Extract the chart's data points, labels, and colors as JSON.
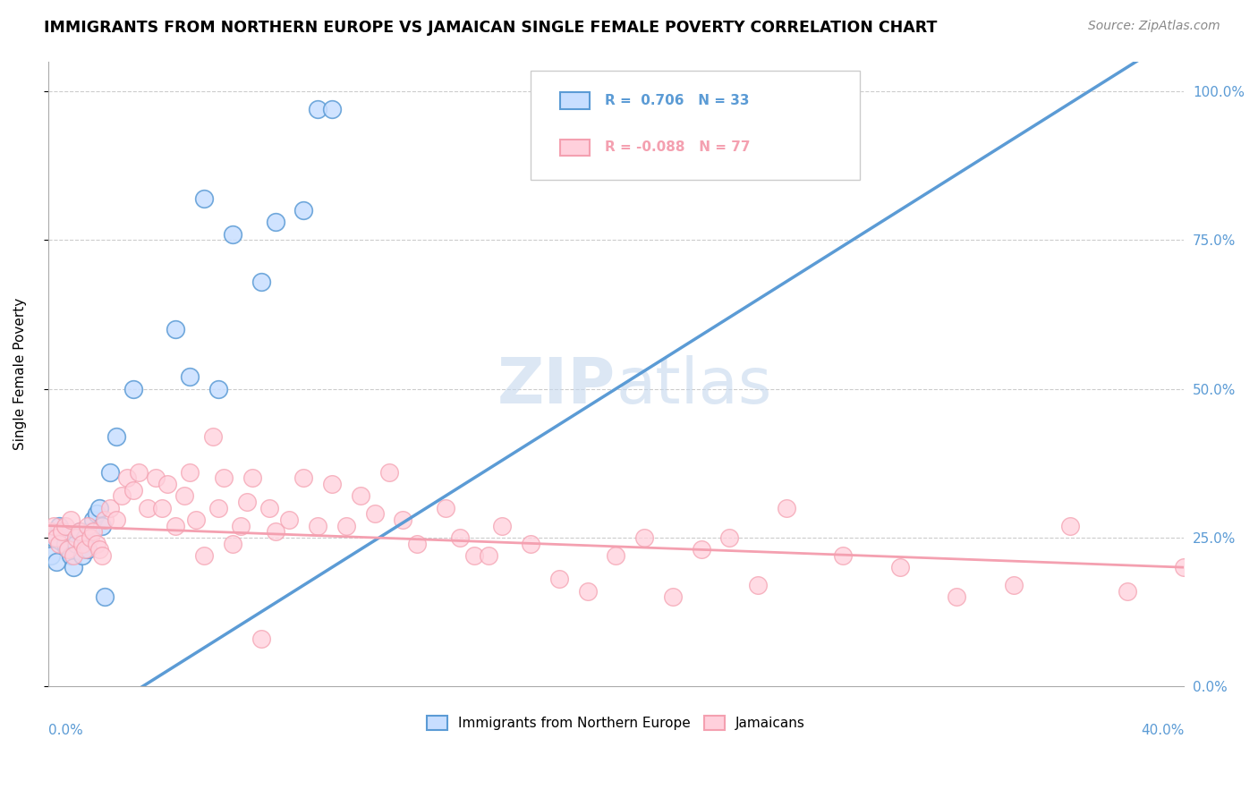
{
  "title": "IMMIGRANTS FROM NORTHERN EUROPE VS JAMAICAN SINGLE FEMALE POVERTY CORRELATION CHART",
  "source": "Source: ZipAtlas.com",
  "ylabel": "Single Female Poverty",
  "R_blue": 0.706,
  "N_blue": 33,
  "R_pink": -0.088,
  "N_pink": 77,
  "blue_color": "#5B9BD5",
  "pink_color": "#F4A0B0",
  "blue_scatter": [
    [
      0.001,
      0.22
    ],
    [
      0.002,
      0.25
    ],
    [
      0.003,
      0.21
    ],
    [
      0.004,
      0.27
    ],
    [
      0.005,
      0.26
    ],
    [
      0.006,
      0.24
    ],
    [
      0.007,
      0.23
    ],
    [
      0.008,
      0.22
    ],
    [
      0.009,
      0.2
    ],
    [
      0.01,
      0.24
    ],
    [
      0.011,
      0.26
    ],
    [
      0.012,
      0.22
    ],
    [
      0.013,
      0.25
    ],
    [
      0.014,
      0.23
    ],
    [
      0.015,
      0.26
    ],
    [
      0.016,
      0.28
    ],
    [
      0.017,
      0.29
    ],
    [
      0.018,
      0.3
    ],
    [
      0.019,
      0.27
    ],
    [
      0.02,
      0.15
    ],
    [
      0.022,
      0.36
    ],
    [
      0.024,
      0.42
    ],
    [
      0.03,
      0.5
    ],
    [
      0.045,
      0.6
    ],
    [
      0.06,
      0.5
    ],
    [
      0.075,
      0.68
    ],
    [
      0.08,
      0.78
    ],
    [
      0.09,
      0.8
    ],
    [
      0.095,
      0.97
    ],
    [
      0.1,
      0.97
    ],
    [
      0.055,
      0.82
    ],
    [
      0.065,
      0.76
    ],
    [
      0.05,
      0.52
    ]
  ],
  "pink_scatter": [
    [
      0.001,
      0.26
    ],
    [
      0.002,
      0.27
    ],
    [
      0.003,
      0.25
    ],
    [
      0.004,
      0.24
    ],
    [
      0.005,
      0.26
    ],
    [
      0.006,
      0.27
    ],
    [
      0.007,
      0.23
    ],
    [
      0.008,
      0.28
    ],
    [
      0.009,
      0.22
    ],
    [
      0.01,
      0.25
    ],
    [
      0.011,
      0.26
    ],
    [
      0.012,
      0.24
    ],
    [
      0.013,
      0.23
    ],
    [
      0.014,
      0.27
    ],
    [
      0.015,
      0.25
    ],
    [
      0.016,
      0.26
    ],
    [
      0.017,
      0.24
    ],
    [
      0.018,
      0.23
    ],
    [
      0.019,
      0.22
    ],
    [
      0.02,
      0.28
    ],
    [
      0.022,
      0.3
    ],
    [
      0.024,
      0.28
    ],
    [
      0.026,
      0.32
    ],
    [
      0.028,
      0.35
    ],
    [
      0.03,
      0.33
    ],
    [
      0.032,
      0.36
    ],
    [
      0.035,
      0.3
    ],
    [
      0.038,
      0.35
    ],
    [
      0.04,
      0.3
    ],
    [
      0.042,
      0.34
    ],
    [
      0.045,
      0.27
    ],
    [
      0.048,
      0.32
    ],
    [
      0.05,
      0.36
    ],
    [
      0.052,
      0.28
    ],
    [
      0.055,
      0.22
    ],
    [
      0.058,
      0.42
    ],
    [
      0.06,
      0.3
    ],
    [
      0.062,
      0.35
    ],
    [
      0.065,
      0.24
    ],
    [
      0.068,
      0.27
    ],
    [
      0.07,
      0.31
    ],
    [
      0.072,
      0.35
    ],
    [
      0.075,
      0.08
    ],
    [
      0.078,
      0.3
    ],
    [
      0.08,
      0.26
    ],
    [
      0.085,
      0.28
    ],
    [
      0.09,
      0.35
    ],
    [
      0.095,
      0.27
    ],
    [
      0.1,
      0.34
    ],
    [
      0.105,
      0.27
    ],
    [
      0.11,
      0.32
    ],
    [
      0.115,
      0.29
    ],
    [
      0.12,
      0.36
    ],
    [
      0.125,
      0.28
    ],
    [
      0.13,
      0.24
    ],
    [
      0.14,
      0.3
    ],
    [
      0.145,
      0.25
    ],
    [
      0.15,
      0.22
    ],
    [
      0.155,
      0.22
    ],
    [
      0.16,
      0.27
    ],
    [
      0.17,
      0.24
    ],
    [
      0.18,
      0.18
    ],
    [
      0.19,
      0.16
    ],
    [
      0.2,
      0.22
    ],
    [
      0.21,
      0.25
    ],
    [
      0.22,
      0.15
    ],
    [
      0.23,
      0.23
    ],
    [
      0.24,
      0.25
    ],
    [
      0.25,
      0.17
    ],
    [
      0.26,
      0.3
    ],
    [
      0.28,
      0.22
    ],
    [
      0.3,
      0.2
    ],
    [
      0.32,
      0.15
    ],
    [
      0.34,
      0.17
    ],
    [
      0.36,
      0.27
    ],
    [
      0.38,
      0.16
    ],
    [
      0.4,
      0.2
    ]
  ],
  "xlim": [
    0.0,
    0.4
  ],
  "ylim": [
    0.0,
    1.05
  ],
  "blue_trend": [
    -0.1,
    1.1
  ],
  "pink_trend_start": 0.27,
  "pink_trend_end": 0.2,
  "watermark_zip": "ZIP",
  "watermark_atlas": "atlas",
  "background_color": "#FFFFFF",
  "grid_color": "#CCCCCC"
}
